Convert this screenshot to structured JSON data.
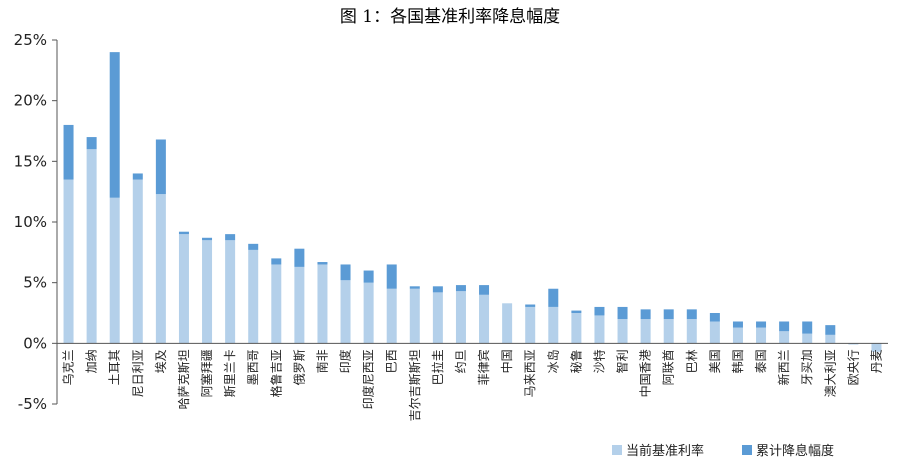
{
  "chart_data": {
    "type": "bar",
    "stacked": true,
    "title": "图 1：各国基准利率降息幅度",
    "xlabel": "",
    "ylabel": "",
    "ylim": [
      -0.05,
      0.25
    ],
    "yticks": [
      "25%",
      "20%",
      "15%",
      "10%",
      "5%",
      "0%",
      "-5%"
    ],
    "ytick_values": [
      0.25,
      0.2,
      0.15,
      0.1,
      0.05,
      0.0,
      -0.05
    ],
    "grid": false,
    "legend_position": "bottom-right",
    "categories": [
      "乌克兰",
      "加纳",
      "土耳其",
      "尼日利亚",
      "埃及",
      "哈萨克斯坦",
      "阿塞拜疆",
      "斯里兰卡",
      "墨西哥",
      "格鲁吉亚",
      "俄罗斯",
      "南非",
      "印度",
      "印度尼西亚",
      "巴西",
      "吉尔吉斯斯坦",
      "巴拉圭",
      "约旦",
      "菲律宾",
      "中国",
      "马来西亚",
      "冰岛",
      "秘鲁",
      "沙特",
      "智利",
      "中国香港",
      "阿联酋",
      "巴林",
      "美国",
      "韩国",
      "泰国",
      "新西兰",
      "牙买加",
      "澳大利亚",
      "欧央行",
      "丹麦"
    ],
    "series": [
      {
        "name": "当前基准利率",
        "color": "#b4d0ea",
        "values": [
          0.135,
          0.16,
          0.12,
          0.135,
          0.123,
          0.09,
          0.085,
          0.085,
          0.077,
          0.065,
          0.063,
          0.065,
          0.052,
          0.05,
          0.045,
          0.045,
          0.042,
          0.043,
          0.04,
          0.033,
          0.03,
          0.03,
          0.025,
          0.023,
          0.02,
          0.02,
          0.02,
          0.02,
          0.018,
          0.013,
          0.013,
          0.01,
          0.008,
          0.007,
          -0.001,
          -0.007
        ]
      },
      {
        "name": "累计降息幅度",
        "color": "#5b9bd5",
        "values": [
          0.045,
          0.01,
          0.12,
          0.005,
          0.045,
          0.002,
          0.002,
          0.005,
          0.005,
          0.005,
          0.015,
          0.002,
          0.013,
          0.01,
          0.02,
          0.002,
          0.005,
          0.005,
          0.008,
          0.0,
          0.002,
          0.015,
          0.002,
          0.007,
          0.01,
          0.008,
          0.008,
          0.008,
          0.007,
          0.005,
          0.005,
          0.008,
          0.01,
          0.008,
          0.0,
          0.0
        ]
      }
    ]
  }
}
